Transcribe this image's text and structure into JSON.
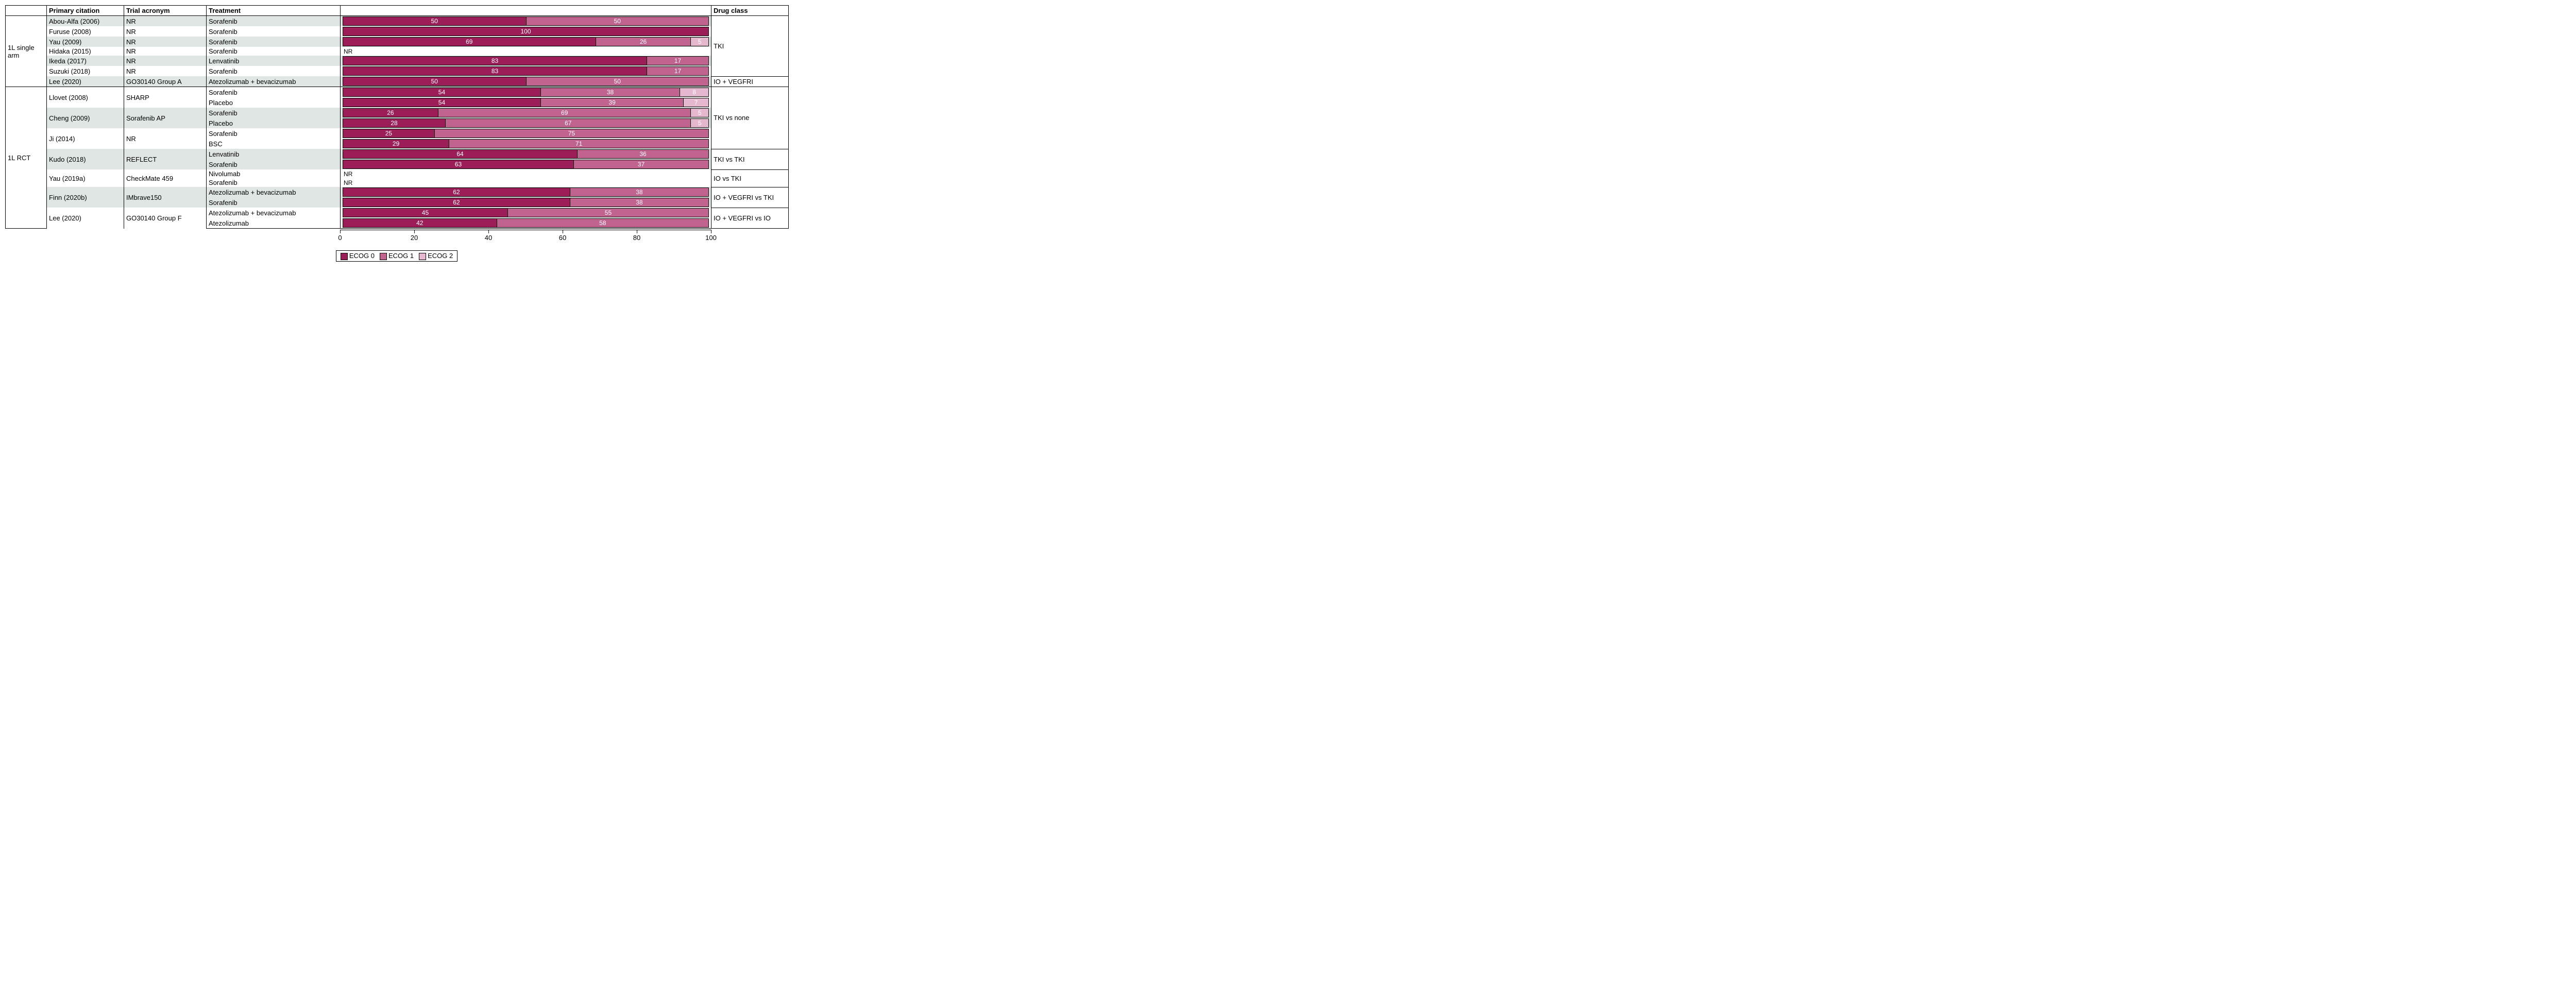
{
  "colors": {
    "ecog0": "#9c1e58",
    "ecog1": "#c0638f",
    "ecog2": "#e6b8cf",
    "alt0": "#ffffff",
    "alt1": "#dfe6e4",
    "border": "#000000"
  },
  "headers": {
    "category": "",
    "citation": "Primary citation",
    "acronym": "Trial acronym",
    "treatment": "Treatment",
    "chart": "",
    "drugclass": "Drug class"
  },
  "legend": {
    "items": [
      {
        "label": "ECOG 0",
        "color_key": "ecog0"
      },
      {
        "label": "ECOG 1",
        "color_key": "ecog1"
      },
      {
        "label": "ECOG 2",
        "color_key": "ecog2"
      }
    ]
  },
  "axis": {
    "min": 0,
    "max": 100,
    "ticks": [
      0,
      20,
      40,
      60,
      80,
      100
    ]
  },
  "categories": [
    {
      "label": "1L single arm",
      "drug_groups": [
        {
          "label": "TKI",
          "trials": [
            {
              "citation": "Abou-Alfa (2006)",
              "acronym": "NR",
              "alt": 1,
              "arms": [
                {
                  "treatment": "Sorafenib",
                  "segments": [
                    {
                      "k": "ecog0",
                      "v": 50
                    },
                    {
                      "k": "ecog1",
                      "v": 50
                    }
                  ]
                }
              ]
            },
            {
              "citation": "Furuse (2008)",
              "acronym": "NR",
              "alt": 0,
              "arms": [
                {
                  "treatment": "Sorafenib",
                  "segments": [
                    {
                      "k": "ecog0",
                      "v": 100
                    }
                  ]
                }
              ]
            },
            {
              "citation": "Yau (2009)",
              "acronym": "NR",
              "alt": 1,
              "arms": [
                {
                  "treatment": "Sorafenib",
                  "segments": [
                    {
                      "k": "ecog0",
                      "v": 69
                    },
                    {
                      "k": "ecog1",
                      "v": 26
                    },
                    {
                      "k": "ecog2",
                      "v": 5
                    }
                  ]
                }
              ]
            },
            {
              "citation": "Hidaka (2015)",
              "acronym": "NR",
              "alt": 0,
              "arms": [
                {
                  "treatment": "Sorafenib",
                  "nr": "NR"
                }
              ]
            },
            {
              "citation": "Ikeda (2017)",
              "acronym": "NR",
              "alt": 1,
              "arms": [
                {
                  "treatment": "Lenvatinib",
                  "segments": [
                    {
                      "k": "ecog0",
                      "v": 83
                    },
                    {
                      "k": "ecog1",
                      "v": 17
                    }
                  ]
                }
              ]
            },
            {
              "citation": "Suzuki (2018)",
              "acronym": "NR",
              "alt": 0,
              "arms": [
                {
                  "treatment": "Sorafenib",
                  "segments": [
                    {
                      "k": "ecog0",
                      "v": 83
                    },
                    {
                      "k": "ecog1",
                      "v": 17
                    }
                  ]
                }
              ]
            }
          ]
        },
        {
          "label": "IO + VEGFRI",
          "trials": [
            {
              "citation": "Lee (2020)",
              "acronym": "GO30140 Group A",
              "alt": 1,
              "arms": [
                {
                  "treatment": "Atezolizumab + bevacizumab",
                  "segments": [
                    {
                      "k": "ecog0",
                      "v": 50
                    },
                    {
                      "k": "ecog1",
                      "v": 50
                    }
                  ]
                }
              ]
            }
          ]
        }
      ]
    },
    {
      "label": "1L RCT",
      "drug_groups": [
        {
          "label": "TKI vs none",
          "trials": [
            {
              "citation": "Llovet (2008)",
              "acronym": "SHARP",
              "alt": 0,
              "arms": [
                {
                  "treatment": "Sorafenib",
                  "segments": [
                    {
                      "k": "ecog0",
                      "v": 54
                    },
                    {
                      "k": "ecog1",
                      "v": 38
                    },
                    {
                      "k": "ecog2",
                      "v": 8
                    }
                  ]
                },
                {
                  "treatment": "Placebo",
                  "segments": [
                    {
                      "k": "ecog0",
                      "v": 54
                    },
                    {
                      "k": "ecog1",
                      "v": 39
                    },
                    {
                      "k": "ecog2",
                      "v": 7
                    }
                  ]
                }
              ]
            },
            {
              "citation": "Cheng (2009)",
              "acronym": "Sorafenib AP",
              "alt": 1,
              "arms": [
                {
                  "treatment": "Sorafenib",
                  "segments": [
                    {
                      "k": "ecog0",
                      "v": 26
                    },
                    {
                      "k": "ecog1",
                      "v": 69
                    },
                    {
                      "k": "ecog2",
                      "v": 5
                    }
                  ]
                },
                {
                  "treatment": "Placebo",
                  "segments": [
                    {
                      "k": "ecog0",
                      "v": 28
                    },
                    {
                      "k": "ecog1",
                      "v": 67
                    },
                    {
                      "k": "ecog2",
                      "v": 5
                    }
                  ]
                }
              ]
            },
            {
              "citation": "Ji (2014)",
              "acronym": "NR",
              "alt": 0,
              "arms": [
                {
                  "treatment": "Sorafenib",
                  "segments": [
                    {
                      "k": "ecog0",
                      "v": 25
                    },
                    {
                      "k": "ecog1",
                      "v": 75
                    }
                  ]
                },
                {
                  "treatment": "BSC",
                  "segments": [
                    {
                      "k": "ecog0",
                      "v": 29
                    },
                    {
                      "k": "ecog1",
                      "v": 71
                    }
                  ]
                }
              ]
            }
          ]
        },
        {
          "label": "TKI vs TKI",
          "trials": [
            {
              "citation": "Kudo (2018)",
              "acronym": "REFLECT",
              "alt": 1,
              "arms": [
                {
                  "treatment": "Lenvatinib",
                  "segments": [
                    {
                      "k": "ecog0",
                      "v": 64
                    },
                    {
                      "k": "ecog1",
                      "v": 36
                    }
                  ]
                },
                {
                  "treatment": "Sorafenib",
                  "segments": [
                    {
                      "k": "ecog0",
                      "v": 63
                    },
                    {
                      "k": "ecog1",
                      "v": 37
                    }
                  ]
                }
              ]
            }
          ]
        },
        {
          "label": "IO vs TKI",
          "trials": [
            {
              "citation": "Yau (2019a)",
              "acronym": "CheckMate 459",
              "alt": 0,
              "arms": [
                {
                  "treatment": "Nivolumab",
                  "nr": "NR"
                },
                {
                  "treatment": "Sorafenib",
                  "nr": "NR"
                }
              ]
            }
          ]
        },
        {
          "label": "IO + VEGFRI vs TKI",
          "trials": [
            {
              "citation": "Finn (2020b)",
              "acronym": "IMbrave150",
              "alt": 1,
              "arms": [
                {
                  "treatment": "Atezolizumab + bevacizumab",
                  "segments": [
                    {
                      "k": "ecog0",
                      "v": 62
                    },
                    {
                      "k": "ecog1",
                      "v": 38
                    }
                  ]
                },
                {
                  "treatment": "Sorafenib",
                  "segments": [
                    {
                      "k": "ecog0",
                      "v": 62
                    },
                    {
                      "k": "ecog1",
                      "v": 38
                    }
                  ]
                }
              ]
            }
          ]
        },
        {
          "label": "IO + VEGFRI vs IO",
          "trials": [
            {
              "citation": "Lee (2020)",
              "acronym": "GO30140 Group F",
              "alt": 0,
              "arms": [
                {
                  "treatment": "Atezolizumab + bevacizumab",
                  "segments": [
                    {
                      "k": "ecog0",
                      "v": 45
                    },
                    {
                      "k": "ecog1",
                      "v": 55
                    }
                  ]
                },
                {
                  "treatment": "Atezolizumab",
                  "segments": [
                    {
                      "k": "ecog0",
                      "v": 42
                    },
                    {
                      "k": "ecog1",
                      "v": 58
                    }
                  ]
                }
              ]
            }
          ]
        }
      ]
    }
  ]
}
